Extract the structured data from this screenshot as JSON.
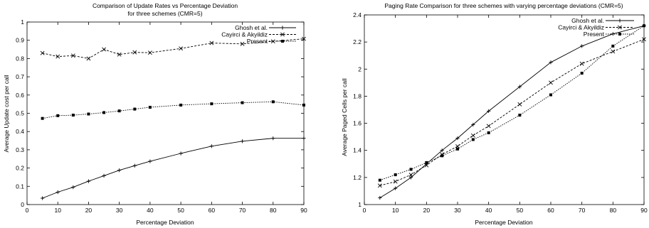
{
  "chart_data": [
    {
      "type": "line",
      "title": "Comparison of Update Rates vs Percentage Deviation",
      "subtitle": "for three schemes (CMR=5)",
      "xlabel": "Percentage Deviation",
      "ylabel": "Average Update cost per call",
      "xlim": [
        0,
        90
      ],
      "ylim": [
        0,
        1
      ],
      "xticks": [
        "0",
        "10",
        "20",
        "30",
        "40",
        "50",
        "60",
        "70",
        "80",
        "90"
      ],
      "yticks": [
        "0",
        "0.1",
        "0.2",
        "0.3",
        "0.4",
        "0.5",
        "0.6",
        "0.7",
        "0.8",
        "0.9",
        "1"
      ],
      "legend_position": "top-right",
      "grid": false,
      "series": [
        {
          "name": "Ghosh et al.",
          "marker": "plus",
          "dash": "solid",
          "x": [
            5,
            10,
            15,
            20,
            25,
            30,
            35,
            40,
            50,
            60,
            70,
            80,
            90
          ],
          "values": [
            0.035,
            0.068,
            0.095,
            0.128,
            0.158,
            0.188,
            0.213,
            0.237,
            0.28,
            0.32,
            0.347,
            0.363,
            0.363
          ]
        },
        {
          "name": "Cayirci & Akyildiz",
          "marker": "cross",
          "dash": "dashed",
          "x": [
            5,
            10,
            15,
            20,
            25,
            30,
            35,
            40,
            50,
            60,
            70,
            80,
            90
          ],
          "values": [
            0.83,
            0.811,
            0.816,
            0.8,
            0.85,
            0.822,
            0.834,
            0.832,
            0.855,
            0.885,
            0.88,
            0.894,
            0.908
          ]
        },
        {
          "name": "Present",
          "marker": "square",
          "dash": "dotted",
          "x": [
            5,
            10,
            15,
            20,
            25,
            30,
            35,
            40,
            50,
            60,
            70,
            80,
            90
          ],
          "values": [
            0.472,
            0.487,
            0.49,
            0.496,
            0.504,
            0.513,
            0.523,
            0.533,
            0.545,
            0.552,
            0.558,
            0.563,
            0.545
          ]
        }
      ]
    },
    {
      "type": "line",
      "title": "Paging Rate Comparison for three schemes with varying percentage deviations (CMR=5)",
      "subtitle": "",
      "xlabel": "Percentage Deviation",
      "ylabel": "Average Paged Cells per call",
      "xlim": [
        0,
        90
      ],
      "ylim": [
        1,
        2.4
      ],
      "xticks": [
        "0",
        "10",
        "20",
        "30",
        "40",
        "50",
        "60",
        "70",
        "80",
        "90"
      ],
      "yticks": [
        "1",
        "1.2",
        "1.4",
        "1.6",
        "1.8",
        "2",
        "2.2",
        "2.4"
      ],
      "legend_position": "top-right",
      "grid": false,
      "series": [
        {
          "name": "Ghosh et al.",
          "marker": "plus",
          "dash": "solid",
          "x": [
            5,
            10,
            15,
            20,
            25,
            30,
            35,
            40,
            50,
            60,
            70,
            80,
            90
          ],
          "values": [
            1.05,
            1.12,
            1.2,
            1.3,
            1.4,
            1.49,
            1.59,
            1.69,
            1.87,
            2.05,
            2.17,
            2.26,
            2.32
          ]
        },
        {
          "name": "Cayirci & Akyildiz",
          "marker": "cross",
          "dash": "dashed",
          "x": [
            5,
            10,
            15,
            20,
            25,
            30,
            35,
            40,
            50,
            60,
            70,
            80,
            90
          ],
          "values": [
            1.14,
            1.17,
            1.22,
            1.29,
            1.37,
            1.43,
            1.51,
            1.58,
            1.74,
            1.9,
            2.04,
            2.13,
            2.22
          ]
        },
        {
          "name": "Present",
          "marker": "square",
          "dash": "dotted",
          "x": [
            5,
            10,
            15,
            20,
            25,
            30,
            35,
            40,
            50,
            60,
            70,
            80,
            90
          ],
          "values": [
            1.18,
            1.22,
            1.26,
            1.31,
            1.36,
            1.41,
            1.48,
            1.53,
            1.66,
            1.81,
            1.97,
            2.17,
            2.32
          ]
        }
      ]
    }
  ]
}
